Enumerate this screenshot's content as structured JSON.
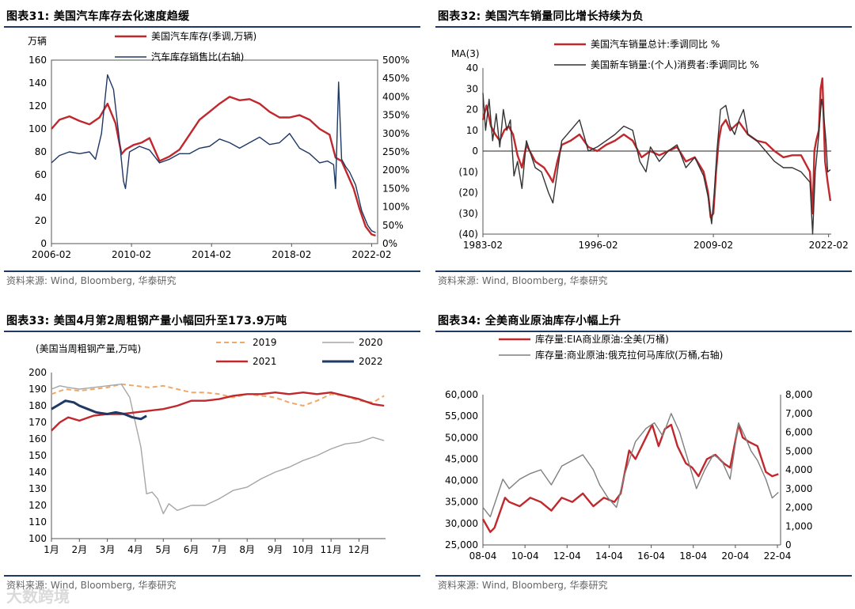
{
  "panels": [
    {
      "title": "图表31:  美国汽车库存去化速度趋缓",
      "source": "资料来源: Wind, Bloomberg, 华泰研究"
    },
    {
      "title": "图表32:  美国汽车销量同比增长持续为负",
      "source": "资料来源: Wind, Bloomberg, 华泰研究"
    },
    {
      "title": "图表33:  美国4月第2周粗钢产量小幅回升至173.9万吨",
      "source": "资料来源: Wind, Bloomberg, 华泰研究"
    },
    {
      "title": "图表34:  全美商业原油库存小幅上升",
      "source": "资料来源: Wind, Bloomberg, 华泰研究"
    }
  ],
  "watermark": "大数跨境",
  "chart_data": [
    {
      "type": "line",
      "unit_label": "万辆",
      "x_ticks": [
        "2006-02",
        "2010-02",
        "2014-02",
        "2018-02",
        "2022-02"
      ],
      "x_range": [
        2006.1,
        2022.4
      ],
      "ylim": [
        0,
        160
      ],
      "y_ticks": [
        0,
        20,
        40,
        60,
        80,
        100,
        120,
        140,
        160
      ],
      "y2lim": [
        0,
        500
      ],
      "y2_ticks": [
        "0%",
        "50%",
        "100%",
        "150%",
        "200%",
        "250%",
        "300%",
        "350%",
        "400%",
        "450%",
        "500%"
      ],
      "series": [
        {
          "name": "美国汽车库存(季调,万辆)",
          "color": "#c0282d",
          "axis": "left",
          "x": [
            2006.1,
            2006.5,
            2007.0,
            2007.5,
            2008.0,
            2008.5,
            2008.9,
            2009.3,
            2009.6,
            2009.8,
            2010.2,
            2010.6,
            2011.0,
            2011.5,
            2012.0,
            2012.5,
            2013.0,
            2013.5,
            2014.0,
            2014.5,
            2015.0,
            2015.5,
            2016.0,
            2016.5,
            2017.0,
            2017.5,
            2018.0,
            2018.5,
            2019.0,
            2019.5,
            2020.0,
            2020.3,
            2020.6,
            2020.9,
            2021.2,
            2021.5,
            2021.8,
            2022.1,
            2022.3
          ],
          "y": [
            100,
            108,
            111,
            107,
            104,
            110,
            122,
            105,
            78,
            82,
            86,
            88,
            92,
            72,
            76,
            82,
            95,
            108,
            115,
            122,
            128,
            125,
            126,
            122,
            115,
            110,
            110,
            112,
            108,
            100,
            95,
            75,
            72,
            60,
            48,
            30,
            15,
            8,
            7
          ]
        },
        {
          "name": "汽车库存销售比(右轴)",
          "color": "#1f3864",
          "axis": "right",
          "x": [
            2006.1,
            2006.5,
            2007.0,
            2007.5,
            2008.0,
            2008.3,
            2008.6,
            2008.9,
            2009.2,
            2009.5,
            2009.7,
            2009.8,
            2010.0,
            2010.5,
            2011.0,
            2011.5,
            2012.0,
            2012.5,
            2013.0,
            2013.5,
            2014.0,
            2014.5,
            2015.0,
            2015.5,
            2016.0,
            2016.5,
            2017.0,
            2017.5,
            2018.0,
            2018.5,
            2019.0,
            2019.5,
            2019.9,
            2020.2,
            2020.3,
            2020.45,
            2020.6,
            2020.8,
            2021.0,
            2021.3,
            2021.6,
            2021.9,
            2022.1,
            2022.3
          ],
          "y": [
            220,
            240,
            250,
            245,
            250,
            230,
            300,
            460,
            420,
            280,
            170,
            150,
            250,
            265,
            255,
            220,
            230,
            245,
            245,
            260,
            265,
            285,
            275,
            260,
            275,
            290,
            270,
            275,
            300,
            260,
            245,
            220,
            225,
            215,
            150,
            440,
            230,
            210,
            195,
            160,
            90,
            50,
            35,
            30
          ]
        }
      ]
    },
    {
      "type": "line",
      "unit_label": "MA(3)",
      "x_ticks": [
        "1983-02",
        "1996-02",
        "2009-02",
        "2022-02"
      ],
      "x_range": [
        1983.1,
        2022.4
      ],
      "ylim": [
        -40,
        40
      ],
      "y_ticks": [
        "(40)",
        "(30)",
        "(20)",
        "(10)",
        "0",
        "10",
        "20",
        "30",
        "40"
      ],
      "series": [
        {
          "name": "美国汽车销量总计:季调同比 %",
          "color": "#c0282d",
          "x": [
            1983.1,
            1983.5,
            1984.0,
            1984.5,
            1985.0,
            1985.5,
            1986.0,
            1986.5,
            1987.0,
            1987.5,
            1988.0,
            1989.0,
            1990.0,
            1990.6,
            1991.0,
            1991.5,
            1992.0,
            1993.0,
            1994.0,
            1995.0,
            1996.0,
            1997.0,
            1998.0,
            1999.0,
            2000.0,
            2001.0,
            2002.0,
            2003.0,
            2004.0,
            2005.0,
            2006.0,
            2007.0,
            2008.0,
            2008.5,
            2008.8,
            2009.1,
            2009.4,
            2009.7,
            2010.0,
            2010.5,
            2011.0,
            2011.5,
            2012.0,
            2013.0,
            2014.0,
            2015.0,
            2016.0,
            2017.0,
            2018.0,
            2019.0,
            2020.0,
            2020.3,
            2020.5,
            2020.7,
            2021.0,
            2021.2,
            2021.4,
            2021.7,
            2022.0,
            2022.3
          ],
          "y": [
            15,
            22,
            12,
            8,
            5,
            10,
            12,
            8,
            -2,
            -8,
            3,
            -5,
            -8,
            -12,
            -15,
            -5,
            3,
            5,
            8,
            2,
            0,
            3,
            5,
            8,
            5,
            -3,
            0,
            -2,
            0,
            2,
            -5,
            -3,
            -10,
            -20,
            -32,
            -30,
            -10,
            5,
            12,
            15,
            10,
            12,
            14,
            8,
            5,
            4,
            0,
            -3,
            -2,
            -2,
            -10,
            -30,
            0,
            5,
            10,
            30,
            35,
            -5,
            -15,
            -24
          ]
        },
        {
          "name": "美国新车销量:(个人)消费者:季调同比 %",
          "color": "#333333",
          "x": [
            1983.1,
            1983.4,
            1983.8,
            1984.2,
            1984.6,
            1985.0,
            1985.4,
            1985.8,
            1986.2,
            1986.6,
            1987.0,
            1987.5,
            1988.0,
            1989.0,
            1989.7,
            1990.5,
            1991.0,
            1991.5,
            1992.0,
            1993.0,
            1994.0,
            1995.0,
            1996.0,
            1997.0,
            1998.0,
            1999.0,
            2000.0,
            2000.8,
            2001.5,
            2002.0,
            2003.0,
            2004.0,
            2005.0,
            2006.0,
            2007.0,
            2008.0,
            2008.5,
            2008.9,
            2009.2,
            2009.5,
            2009.9,
            2010.5,
            2011.0,
            2011.5,
            2012.0,
            2012.5,
            2013.0,
            2014.0,
            2015.0,
            2016.0,
            2017.0,
            2018.0,
            2019.0,
            2020.0,
            2020.3,
            2020.6,
            2021.0,
            2021.3,
            2021.5,
            2021.8,
            2022.0,
            2022.3
          ],
          "y": [
            28,
            10,
            25,
            5,
            18,
            2,
            20,
            10,
            15,
            -12,
            -5,
            -18,
            5,
            -8,
            -10,
            -20,
            -25,
            -10,
            5,
            10,
            15,
            0,
            2,
            5,
            8,
            12,
            10,
            -5,
            -10,
            2,
            -5,
            0,
            3,
            -8,
            -3,
            -12,
            -22,
            -35,
            -20,
            0,
            20,
            22,
            12,
            8,
            15,
            20,
            8,
            5,
            0,
            -5,
            -8,
            -8,
            -10,
            -15,
            -40,
            -10,
            8,
            25,
            20,
            5,
            -10,
            -9
          ]
        }
      ]
    },
    {
      "type": "line",
      "unit_label": "(美国当周粗钢产量,万吨)",
      "x_ticks": [
        "1月",
        "2月",
        "3月",
        "4月",
        "5月",
        "6月",
        "7月",
        "8月",
        "9月",
        "10月",
        "11月",
        "12月"
      ],
      "x_range": [
        1,
        12.95
      ],
      "ylim": [
        100,
        200
      ],
      "y_ticks": [
        100,
        110,
        120,
        130,
        140,
        150,
        160,
        170,
        180,
        190,
        200
      ],
      "series": [
        {
          "name": "2019",
          "color": "#f0a868",
          "dashed": true,
          "x": [
            1.0,
            1.5,
            2.0,
            2.5,
            3.0,
            3.5,
            4.0,
            4.5,
            5.0,
            5.5,
            6.0,
            6.5,
            7.0,
            7.5,
            8.0,
            8.5,
            9.0,
            9.5,
            10.0,
            10.5,
            11.0,
            11.5,
            12.0,
            12.5,
            12.9
          ],
          "y": [
            187,
            190,
            189,
            190,
            191,
            193,
            192,
            191,
            192,
            190,
            188,
            188,
            187,
            185,
            187,
            186,
            185,
            182,
            180,
            183,
            187,
            186,
            183,
            182,
            186
          ]
        },
        {
          "name": "2020",
          "color": "#a6a6a6",
          "x": [
            1.0,
            1.3,
            1.6,
            2.0,
            2.5,
            3.0,
            3.5,
            3.8,
            4.0,
            4.2,
            4.4,
            4.6,
            4.8,
            5.0,
            5.2,
            5.5,
            6.0,
            6.5,
            7.0,
            7.5,
            8.0,
            8.5,
            9.0,
            9.5,
            10.0,
            10.5,
            11.0,
            11.5,
            12.0,
            12.5,
            12.9
          ],
          "y": [
            190,
            192,
            191,
            190,
            191,
            192,
            193,
            185,
            170,
            155,
            127,
            128,
            124,
            115,
            121,
            117,
            120,
            120,
            124,
            129,
            131,
            136,
            140,
            143,
            147,
            150,
            154,
            157,
            158,
            161,
            159
          ]
        },
        {
          "name": "2021",
          "color": "#c0282d",
          "x": [
            1.0,
            1.3,
            1.6,
            2.0,
            2.5,
            3.0,
            3.5,
            4.0,
            4.5,
            5.0,
            5.5,
            6.0,
            6.5,
            7.0,
            7.5,
            8.0,
            8.5,
            9.0,
            9.5,
            10.0,
            10.5,
            11.0,
            11.5,
            12.0,
            12.5,
            12.9
          ],
          "y": [
            165,
            170,
            173,
            171,
            174,
            175,
            175,
            176,
            177,
            178,
            180,
            183,
            183,
            184,
            186,
            187,
            187,
            188,
            187,
            188,
            187,
            188,
            186,
            184,
            181,
            180
          ]
        },
        {
          "name": "2022",
          "color": "#1f3864",
          "x": [
            1.0,
            1.2,
            1.5,
            1.8,
            2.0,
            2.3,
            2.6,
            3.0,
            3.3,
            3.6,
            3.9,
            4.2,
            4.4
          ],
          "y": [
            178,
            180,
            183,
            182,
            180,
            178,
            176,
            175,
            176,
            175,
            173,
            172,
            173.9
          ]
        }
      ]
    },
    {
      "type": "line",
      "x_ticks": [
        "08-04",
        "10-04",
        "12-04",
        "14-04",
        "16-04",
        "18-04",
        "20-04",
        "22-04"
      ],
      "x_range": [
        2008.25,
        2022.4
      ],
      "ylim": [
        25000,
        60000
      ],
      "y_ticks": [
        "25,000",
        "30,000",
        "35,000",
        "40,000",
        "45,000",
        "50,000",
        "55,000",
        "60,000"
      ],
      "y2lim": [
        0,
        8000
      ],
      "y2_ticks": [
        "0",
        "1,000",
        "2,000",
        "3,000",
        "4,000",
        "5,000",
        "6,000",
        "7,000",
        "8,000"
      ],
      "series": [
        {
          "name": "库存量:EIA商业原油:全美(万桶)",
          "color": "#c0282d",
          "axis": "left",
          "x": [
            2008.25,
            2008.6,
            2008.8,
            2009.3,
            2009.5,
            2010.0,
            2010.5,
            2011.0,
            2011.5,
            2012.0,
            2012.5,
            2013.0,
            2013.5,
            2014.0,
            2014.5,
            2014.8,
            2015.2,
            2015.5,
            2016.0,
            2016.3,
            2016.6,
            2016.9,
            2017.2,
            2017.5,
            2017.9,
            2018.2,
            2018.5,
            2018.9,
            2019.3,
            2019.7,
            2020.0,
            2020.4,
            2020.6,
            2020.9,
            2021.3,
            2021.7,
            2022.0,
            2022.3
          ],
          "y": [
            31000,
            28000,
            29000,
            36000,
            35000,
            34000,
            36000,
            35000,
            33000,
            36000,
            35000,
            37000,
            34000,
            36000,
            35000,
            37000,
            47000,
            45000,
            50000,
            53000,
            48000,
            52000,
            53000,
            48000,
            44000,
            43000,
            41000,
            45000,
            46000,
            44000,
            43000,
            53000,
            50000,
            49000,
            48000,
            42000,
            41000,
            41500
          ]
        },
        {
          "name": "库存量:商业原油:俄克拉何马库欣(万桶,右轴)",
          "color": "#7f7f7f",
          "axis": "right",
          "x": [
            2008.25,
            2008.6,
            2008.9,
            2009.2,
            2009.5,
            2010.0,
            2010.5,
            2011.0,
            2011.5,
            2012.0,
            2012.5,
            2013.0,
            2013.5,
            2013.8,
            2014.2,
            2014.6,
            2015.0,
            2015.5,
            2016.0,
            2016.4,
            2016.8,
            2017.2,
            2017.6,
            2018.0,
            2018.4,
            2018.8,
            2019.2,
            2019.6,
            2020.0,
            2020.4,
            2020.7,
            2021.0,
            2021.3,
            2021.7,
            2022.0,
            2022.3
          ],
          "y": [
            2000,
            1500,
            2500,
            3500,
            3000,
            3500,
            3800,
            4000,
            3200,
            4200,
            4500,
            4800,
            4000,
            3200,
            2500,
            2000,
            3800,
            5500,
            6200,
            6500,
            5800,
            7000,
            6000,
            4500,
            3000,
            4000,
            4800,
            4500,
            3500,
            6500,
            5800,
            5000,
            4500,
            3500,
            2500,
            2800
          ]
        }
      ]
    }
  ]
}
